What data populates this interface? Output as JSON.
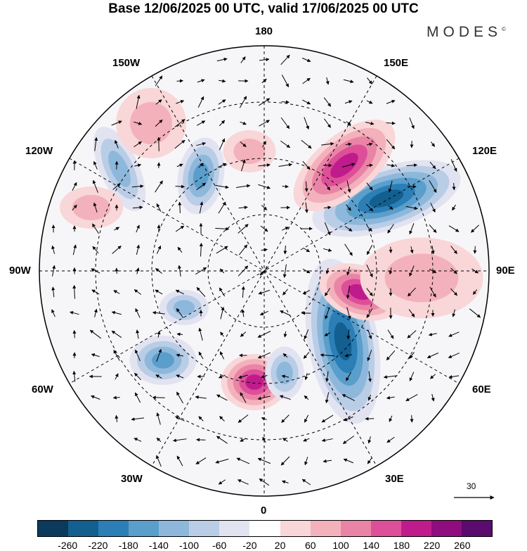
{
  "title": "Base 12/06/2025 00 UTC, valid 17/06/2025 00 UTC",
  "brand": "MODES",
  "brand_mark": "©",
  "map_type": "north-polar-stereographic",
  "longitude_labels": {
    "top": "180",
    "bottom": "0",
    "left": "90W",
    "right": "90E",
    "upper_left": "150W",
    "upper_right": "150E",
    "mid_left_upper": "120W",
    "mid_right_upper": "120E",
    "mid_left_lower": "60W",
    "mid_right_lower": "60E",
    "lower_left": "30W",
    "lower_right": "30E"
  },
  "reference_vector": {
    "label": "30"
  },
  "colorbar": {
    "colors": [
      "#0b3a5c",
      "#125f90",
      "#2b7fb6",
      "#5a9ecb",
      "#8db8db",
      "#b9cde6",
      "#e2e3f1",
      "#ffffff",
      "#f9d6d8",
      "#f3b1bc",
      "#ea84a6",
      "#de4f9a",
      "#c01b8c",
      "#8f0d7e",
      "#5b0b6e"
    ],
    "labels": [
      "-260",
      "-220",
      "-180",
      "-140",
      "-100",
      "-60",
      "-20",
      "20",
      "60",
      "100",
      "140",
      "180",
      "220",
      "260"
    ]
  },
  "anomaly_patches": [
    {
      "name": "east-siberia-negative",
      "value": -240
    },
    {
      "name": "barents-positive",
      "value": 200
    },
    {
      "name": "west-siberia-negative",
      "value": -220
    },
    {
      "name": "scandinavia-positive",
      "value": 180
    },
    {
      "name": "north-atlantic-negative",
      "value": -160
    },
    {
      "name": "north-pacific-positive",
      "value": 200
    },
    {
      "name": "alaska-negative",
      "value": -140
    },
    {
      "name": "canada-negative",
      "value": -120
    },
    {
      "name": "gulf-of-alaska-negative",
      "value": -100
    },
    {
      "name": "greenland-positive",
      "value": 60
    },
    {
      "name": "central-russia-positive",
      "value": 80
    },
    {
      "name": "canada-positive",
      "value": 60
    },
    {
      "name": "labrador-negative",
      "value": -100
    },
    {
      "name": "north-pacific-positive-2",
      "value": 60
    }
  ]
}
